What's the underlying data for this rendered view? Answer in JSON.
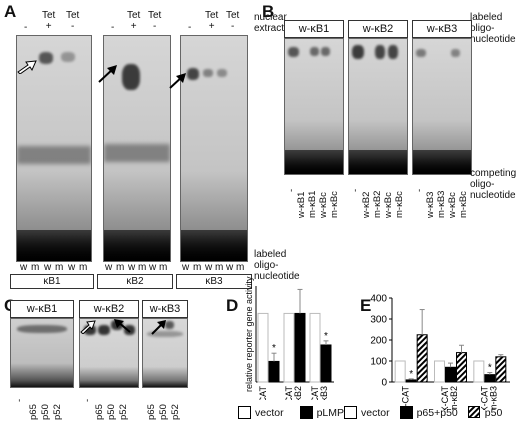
{
  "panels": {
    "A": {
      "label": "A",
      "gel_headers": [
        [
          "-",
          "Tet\n+",
          "Tet\n-"
        ],
        [
          "-",
          "Tet\n+",
          "Tet\n-"
        ],
        [
          "-",
          "Tet\n+",
          "Tet\n-"
        ]
      ],
      "side_label_top": "nuclear\nextract",
      "side_label_bottom": "labeled\noligo-\nnucleotide",
      "lane_labels": [
        "w",
        "m",
        "w",
        "m",
        "w",
        "m"
      ],
      "gel_names": [
        "κB1",
        "κB2",
        "κB3"
      ]
    },
    "B": {
      "label": "B",
      "gel_names": [
        "w-κB1",
        "w-κB2",
        "w-κB3"
      ],
      "side_label_top": "labeled\noligo-\nnucleotide",
      "side_label_bottom": "competing\noligo-\nnucleotide",
      "competitors": [
        [
          "-",
          "w-κB1",
          "m-κB1",
          "w-κBc",
          "m-κBc"
        ],
        [
          "-",
          "w-κB2",
          "m-κB2",
          "w-κBc",
          "m-κBc"
        ],
        [
          "-",
          "w-κB3",
          "m-κB3",
          "w-κBc",
          "m-κBc"
        ]
      ]
    },
    "C": {
      "label": "C",
      "gel_names": [
        "w-κB1",
        "w-κB2",
        "w-κB3"
      ],
      "antibodies": [
        "-",
        "p65",
        "p50",
        "p52"
      ]
    },
    "D": {
      "label": "D",
      "ylabel": "relative reporter gene activity",
      "legend": [
        "vector",
        "pLMP-1"
      ]
    },
    "E": {
      "label": "E",
      "legend": [
        "vector",
        "p65+p50",
        "p50"
      ]
    }
  },
  "chart_data": [
    {
      "panel": "D",
      "type": "bar",
      "categories": [
        "pBAX-CAT",
        "pBAX-CAT\nm-κB2",
        "pBAX-CAT\nm-κB3"
      ],
      "ylabel": "relative reporter gene activity",
      "ylim": [
        0,
        140
      ],
      "series": [
        {
          "name": "vector",
          "values": [
            100,
            100,
            100
          ],
          "errors": [
            0,
            0,
            0
          ],
          "color": "#ffffff"
        },
        {
          "name": "pLMP-1",
          "values": [
            30,
            100,
            54
          ],
          "errors": [
            12,
            35,
            6
          ],
          "color": "#000000"
        }
      ],
      "significance": [
        "*",
        "",
        "*"
      ]
    },
    {
      "panel": "E",
      "type": "bar",
      "categories": [
        "pBAX-CAT",
        "pBAX-CAT\nm-κB2",
        "pBAX-CAT\nm-κB3"
      ],
      "ylabel": "",
      "ylim": [
        0,
        400
      ],
      "yticks": [
        0,
        100,
        200,
        300,
        400
      ],
      "series": [
        {
          "name": "vector",
          "values": [
            100,
            100,
            100
          ],
          "errors": [
            0,
            0,
            0
          ],
          "color": "#ffffff"
        },
        {
          "name": "p65+p50",
          "values": [
            10,
            70,
            35
          ],
          "errors": [
            5,
            20,
            10
          ],
          "color": "#000000"
        },
        {
          "name": "p50",
          "values": [
            225,
            140,
            120
          ],
          "errors": [
            120,
            35,
            10
          ],
          "color": "hatch"
        }
      ],
      "significance": [
        "*",
        "",
        "*"
      ]
    }
  ]
}
